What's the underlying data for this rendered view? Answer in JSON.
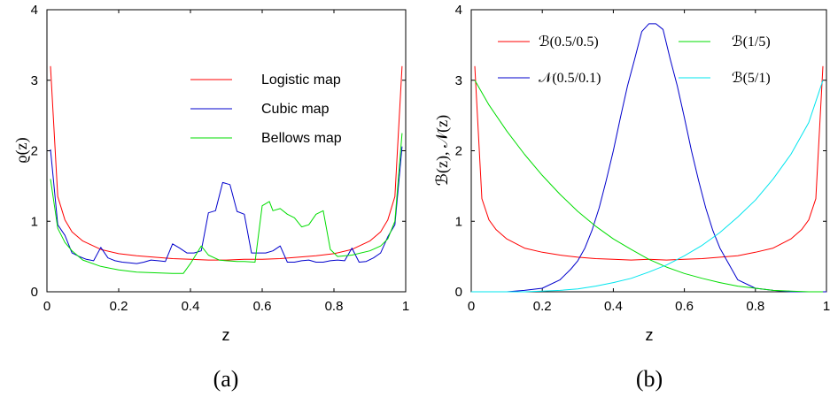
{
  "figure": {
    "panels": [
      {
        "id": "a",
        "caption": "(a)",
        "xlabel": "z",
        "ylabel": "ϱ(z)"
      },
      {
        "id": "b",
        "caption": "(b)",
        "xlabel": "z",
        "ylabel": "ℬ(z), 𝒩(z)"
      }
    ]
  },
  "chart_data": [
    {
      "type": "line",
      "title": "",
      "xlabel": "z",
      "ylabel": "ϱ(z)",
      "xlim": [
        0,
        1
      ],
      "ylim": [
        0,
        4
      ],
      "xticks": [
        "0",
        "0.2",
        "0.4",
        "0.6",
        "0.8",
        "1"
      ],
      "yticks": [
        "0",
        "1",
        "2",
        "3",
        "4"
      ],
      "grid": false,
      "legend_placement": "top-right",
      "series": [
        {
          "name": "Logistic map",
          "color": "#ff0000",
          "x": [
            0.01,
            0.03,
            0.05,
            0.07,
            0.1,
            0.15,
            0.2,
            0.25,
            0.3,
            0.35,
            0.4,
            0.45,
            0.5,
            0.55,
            0.6,
            0.65,
            0.7,
            0.75,
            0.8,
            0.85,
            0.9,
            0.93,
            0.95,
            0.97,
            0.99
          ],
          "y": [
            3.2,
            1.35,
            1.02,
            0.85,
            0.72,
            0.6,
            0.54,
            0.51,
            0.49,
            0.47,
            0.46,
            0.45,
            0.45,
            0.46,
            0.46,
            0.47,
            0.49,
            0.51,
            0.54,
            0.6,
            0.72,
            0.85,
            1.02,
            1.35,
            3.2
          ]
        },
        {
          "name": "Cubic map",
          "color": "#0000cc",
          "x": [
            0.01,
            0.03,
            0.05,
            0.07,
            0.09,
            0.11,
            0.13,
            0.15,
            0.17,
            0.19,
            0.21,
            0.23,
            0.25,
            0.27,
            0.29,
            0.31,
            0.33,
            0.35,
            0.37,
            0.39,
            0.41,
            0.43,
            0.45,
            0.47,
            0.49,
            0.51,
            0.53,
            0.55,
            0.57,
            0.59,
            0.61,
            0.63,
            0.65,
            0.67,
            0.69,
            0.71,
            0.73,
            0.75,
            0.77,
            0.79,
            0.81,
            0.83,
            0.85,
            0.87,
            0.89,
            0.91,
            0.93,
            0.95,
            0.97,
            0.99
          ],
          "y": [
            2.02,
            0.95,
            0.8,
            0.55,
            0.5,
            0.46,
            0.44,
            0.63,
            0.48,
            0.44,
            0.42,
            0.41,
            0.4,
            0.42,
            0.45,
            0.44,
            0.43,
            0.68,
            0.62,
            0.55,
            0.55,
            0.58,
            1.12,
            1.15,
            1.55,
            1.52,
            1.14,
            1.1,
            0.55,
            0.55,
            0.55,
            0.58,
            0.65,
            0.42,
            0.42,
            0.44,
            0.45,
            0.42,
            0.42,
            0.44,
            0.45,
            0.44,
            0.62,
            0.42,
            0.43,
            0.48,
            0.55,
            0.78,
            0.95,
            2.06
          ]
        },
        {
          "name": "Bellows map",
          "color": "#00dd00",
          "x": [
            0.01,
            0.03,
            0.05,
            0.07,
            0.1,
            0.15,
            0.2,
            0.25,
            0.3,
            0.35,
            0.38,
            0.4,
            0.43,
            0.45,
            0.48,
            0.5,
            0.53,
            0.55,
            0.58,
            0.6,
            0.62,
            0.63,
            0.65,
            0.67,
            0.69,
            0.71,
            0.73,
            0.75,
            0.77,
            0.79,
            0.81,
            0.85,
            0.9,
            0.93,
            0.95,
            0.97,
            0.99
          ],
          "y": [
            1.6,
            0.9,
            0.7,
            0.58,
            0.45,
            0.36,
            0.31,
            0.28,
            0.27,
            0.26,
            0.26,
            0.4,
            0.65,
            0.52,
            0.45,
            0.44,
            0.43,
            0.43,
            0.42,
            1.22,
            1.28,
            1.15,
            1.18,
            1.1,
            1.05,
            0.92,
            0.95,
            1.1,
            1.15,
            0.6,
            0.5,
            0.52,
            0.58,
            0.65,
            0.75,
            1.0,
            2.25
          ]
        }
      ]
    },
    {
      "type": "line",
      "title": "",
      "xlabel": "z",
      "ylabel": "ℬ(z), 𝒩(z)",
      "xlim": [
        0,
        1
      ],
      "ylim": [
        0,
        4
      ],
      "xticks": [
        "0",
        "0.2",
        "0.4",
        "0.6",
        "0.8",
        "1"
      ],
      "yticks": [
        "0",
        "1",
        "2",
        "3",
        "4"
      ],
      "grid": false,
      "legend_placement": "top",
      "series": [
        {
          "name": "ℬ(0.5/0.5)",
          "color": "#ff0000",
          "x": [
            0.01,
            0.03,
            0.05,
            0.07,
            0.1,
            0.15,
            0.2,
            0.25,
            0.3,
            0.35,
            0.4,
            0.45,
            0.5,
            0.55,
            0.6,
            0.65,
            0.7,
            0.75,
            0.8,
            0.85,
            0.9,
            0.93,
            0.95,
            0.97,
            0.99
          ],
          "y": [
            3.2,
            1.32,
            1.02,
            0.88,
            0.75,
            0.62,
            0.56,
            0.52,
            0.49,
            0.47,
            0.46,
            0.45,
            0.46,
            0.45,
            0.46,
            0.47,
            0.49,
            0.51,
            0.56,
            0.62,
            0.75,
            0.88,
            1.02,
            1.32,
            3.2
          ]
        },
        {
          "name": "𝒩(0.5/0.1)",
          "color": "#0000cc",
          "x": [
            0.0,
            0.1,
            0.15,
            0.2,
            0.25,
            0.28,
            0.3,
            0.32,
            0.34,
            0.36,
            0.38,
            0.4,
            0.42,
            0.44,
            0.46,
            0.48,
            0.5,
            0.52,
            0.54,
            0.56,
            0.58,
            0.6,
            0.62,
            0.64,
            0.66,
            0.68,
            0.7,
            0.72,
            0.75,
            0.8,
            0.85,
            0.9,
            1.0
          ],
          "y": [
            0.0,
            0.0,
            0.02,
            0.05,
            0.17,
            0.32,
            0.44,
            0.62,
            0.87,
            1.19,
            1.58,
            2.0,
            2.47,
            2.92,
            3.3,
            3.69,
            3.8,
            3.8,
            3.72,
            3.3,
            2.92,
            2.47,
            2.0,
            1.58,
            1.19,
            0.87,
            0.62,
            0.44,
            0.17,
            0.05,
            0.02,
            0.0,
            0.0
          ]
        },
        {
          "name": "ℬ(1/5)",
          "color": "#00dd00",
          "x": [
            0.01,
            0.05,
            0.1,
            0.15,
            0.2,
            0.25,
            0.3,
            0.35,
            0.4,
            0.45,
            0.5,
            0.55,
            0.6,
            0.65,
            0.7,
            0.75,
            0.8,
            0.85,
            0.9,
            0.95,
            0.99
          ],
          "y": [
            3.0,
            2.65,
            2.28,
            1.95,
            1.65,
            1.38,
            1.14,
            0.93,
            0.75,
            0.6,
            0.46,
            0.35,
            0.26,
            0.19,
            0.13,
            0.08,
            0.05,
            0.02,
            0.01,
            0.0,
            0.0
          ]
        },
        {
          "name": "ℬ(5/1)",
          "color": "#00e5ee",
          "x": [
            0.0,
            0.05,
            0.1,
            0.15,
            0.2,
            0.25,
            0.3,
            0.35,
            0.4,
            0.45,
            0.5,
            0.55,
            0.6,
            0.65,
            0.7,
            0.75,
            0.8,
            0.85,
            0.9,
            0.95,
            0.99
          ],
          "y": [
            0.0,
            0.0,
            0.0,
            0.0,
            0.01,
            0.02,
            0.04,
            0.08,
            0.13,
            0.19,
            0.28,
            0.38,
            0.51,
            0.66,
            0.84,
            1.06,
            1.3,
            1.6,
            1.95,
            2.4,
            3.0
          ]
        }
      ]
    }
  ]
}
